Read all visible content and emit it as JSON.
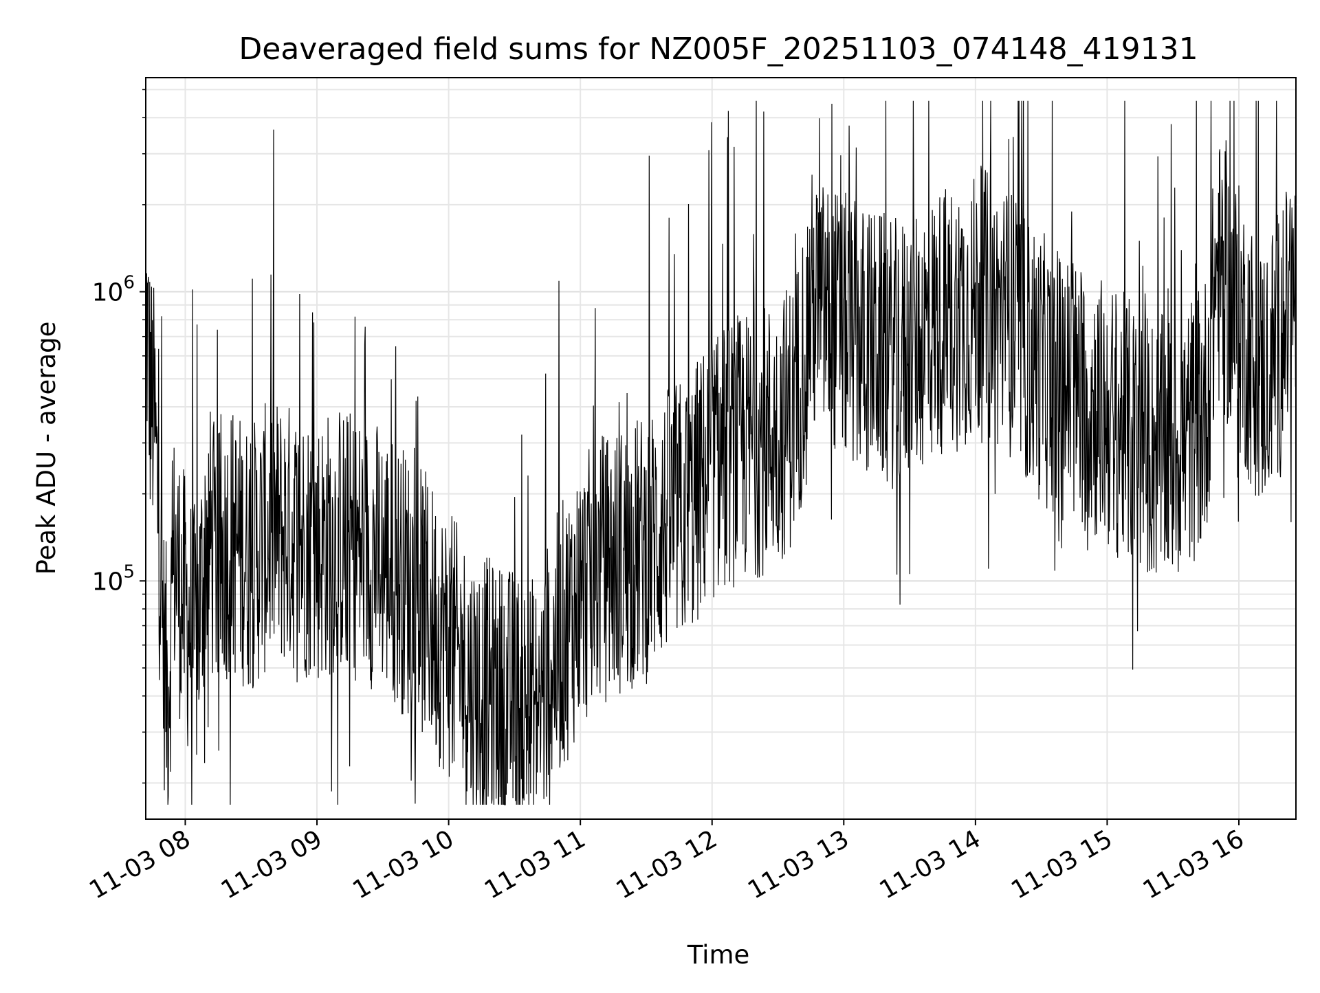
{
  "chart_data": {
    "type": "line",
    "title": "Deaveraged field sums for NZ005F_20251103_074148_419131",
    "xlabel": "Time",
    "ylabel": "Peak ADU - average",
    "yscale": "log",
    "ylim": [
      15000,
      5500000
    ],
    "xlim": [
      "2025-11-03 07:42",
      "2025-11-03 16:26"
    ],
    "grid": true,
    "line_color": "#000000",
    "x_ticks": [
      {
        "label": "11-03 08",
        "time": "2025-11-03 08:00"
      },
      {
        "label": "11-03 09",
        "time": "2025-11-03 09:00"
      },
      {
        "label": "11-03 10",
        "time": "2025-11-03 10:00"
      },
      {
        "label": "11-03 11",
        "time": "2025-11-03 11:00"
      },
      {
        "label": "11-03 12",
        "time": "2025-11-03 12:00"
      },
      {
        "label": "11-03 13",
        "time": "2025-11-03 13:00"
      },
      {
        "label": "11-03 14",
        "time": "2025-11-03 14:00"
      },
      {
        "label": "11-03 15",
        "time": "2025-11-03 15:00"
      },
      {
        "label": "11-03 16",
        "time": "2025-11-03 16:00"
      }
    ],
    "y_ticks": [
      {
        "base": "10",
        "exp": "5",
        "value": 100000
      },
      {
        "base": "10",
        "exp": "6",
        "value": 1000000
      }
    ],
    "series": [
      {
        "points": [
          [
            "2025-11-03 07:42",
            900000
          ],
          [
            "2025-11-03 07:44",
            450000
          ],
          [
            "2025-11-03 07:46",
            350000
          ],
          [
            "2025-11-03 07:48",
            150000
          ],
          [
            "2025-11-03 07:50",
            60000
          ],
          [
            "2025-11-03 07:52",
            40000
          ],
          [
            "2025-11-03 07:55",
            120000
          ],
          [
            "2025-11-03 08:00",
            80000
          ],
          [
            "2025-11-03 08:05",
            60000
          ],
          [
            "2025-11-03 08:10",
            150000
          ],
          [
            "2025-11-03 08:15",
            110000
          ],
          [
            "2025-11-03 08:20",
            140000
          ],
          [
            "2025-11-03 08:30",
            120000
          ],
          [
            "2025-11-03 08:40",
            150000
          ],
          [
            "2025-11-03 08:50",
            140000
          ],
          [
            "2025-11-03 09:00",
            130000
          ],
          [
            "2025-11-03 09:10",
            140000
          ],
          [
            "2025-11-03 09:20",
            130000
          ],
          [
            "2025-11-03 09:30",
            120000
          ],
          [
            "2025-11-03 09:40",
            100000
          ],
          [
            "2025-11-03 09:50",
            80000
          ],
          [
            "2025-11-03 10:00",
            60000
          ],
          [
            "2025-11-03 10:10",
            45000
          ],
          [
            "2025-11-03 10:20",
            40000
          ],
          [
            "2025-11-03 10:30",
            38000
          ],
          [
            "2025-11-03 10:40",
            35000
          ],
          [
            "2025-11-03 10:50",
            60000
          ],
          [
            "2025-11-03 11:00",
            90000
          ],
          [
            "2025-11-03 11:10",
            110000
          ],
          [
            "2025-11-03 11:20",
            120000
          ],
          [
            "2025-11-03 11:30",
            130000
          ],
          [
            "2025-11-03 11:40",
            160000
          ],
          [
            "2025-11-03 11:50",
            180000
          ],
          [
            "2025-11-03 12:00",
            250000
          ],
          [
            "2025-11-03 12:10",
            280000
          ],
          [
            "2025-11-03 12:20",
            300000
          ],
          [
            "2025-11-03 12:30",
            330000
          ],
          [
            "2025-11-03 12:38",
            400000
          ],
          [
            "2025-11-03 12:45",
            900000
          ],
          [
            "2025-11-03 12:55",
            800000
          ],
          [
            "2025-11-03 13:05",
            700000
          ],
          [
            "2025-11-03 13:15",
            650000
          ],
          [
            "2025-11-03 13:25",
            600000
          ],
          [
            "2025-11-03 13:35",
            700000
          ],
          [
            "2025-11-03 13:45",
            800000
          ],
          [
            "2025-11-03 13:55",
            850000
          ],
          [
            "2025-11-03 14:05",
            900000
          ],
          [
            "2025-11-03 14:15",
            800000
          ],
          [
            "2025-11-03 14:25",
            600000
          ],
          [
            "2025-11-03 14:35",
            500000
          ],
          [
            "2025-11-03 14:45",
            450000
          ],
          [
            "2025-11-03 14:55",
            400000
          ],
          [
            "2025-11-03 15:05",
            350000
          ],
          [
            "2025-11-03 15:15",
            300000
          ],
          [
            "2025-11-03 15:25",
            280000
          ],
          [
            "2025-11-03 15:35",
            300000
          ],
          [
            "2025-11-03 15:45",
            400000
          ],
          [
            "2025-11-03 15:50",
            1200000
          ],
          [
            "2025-11-03 16:00",
            800000
          ],
          [
            "2025-11-03 16:10",
            500000
          ],
          [
            "2025-11-03 16:20",
            700000
          ],
          [
            "2025-11-03 16:26",
            1000000
          ]
        ]
      }
    ]
  }
}
